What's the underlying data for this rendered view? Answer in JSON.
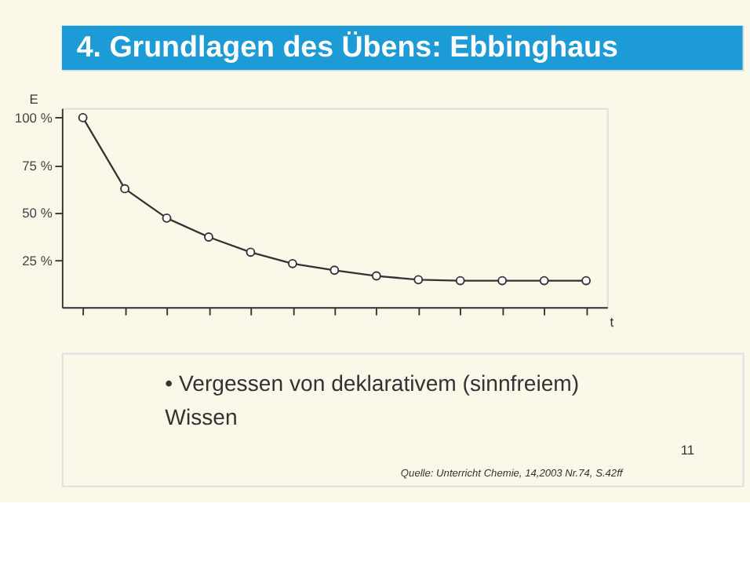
{
  "chart_data": {
    "type": "line",
    "title": "4. Grundlagen des Übens: Ebbinghaus",
    "xlabel": "t",
    "ylabel": "E",
    "categories": [
      null,
      null,
      null,
      null,
      null,
      null,
      null,
      null,
      null,
      null,
      null,
      null,
      null
    ],
    "series": [
      {
        "color": "#333333",
        "values": [
          100,
          62.5,
          47,
          37,
          29,
          23,
          19.5,
          16.5,
          14.5,
          14,
          14,
          14,
          14
        ]
      }
    ],
    "ylim": [
      0,
      105
    ],
    "yticks": [
      {
        "value": 25,
        "label": "25 %"
      },
      {
        "value": 50,
        "label": "50 %"
      },
      {
        "value": 75,
        "label": "75 %"
      },
      {
        "value": 100,
        "label": "100 %"
      }
    ],
    "grid": false,
    "marker": "circle",
    "line_style": "solid",
    "tick_labels": "y",
    "annotations": [
      "• Vergessen von deklarativem (sinnfreiem) Wissen",
      "Quelle: Unterricht Chemie, 14,2003 Nr.74, S.42ff",
      "11"
    ]
  }
}
